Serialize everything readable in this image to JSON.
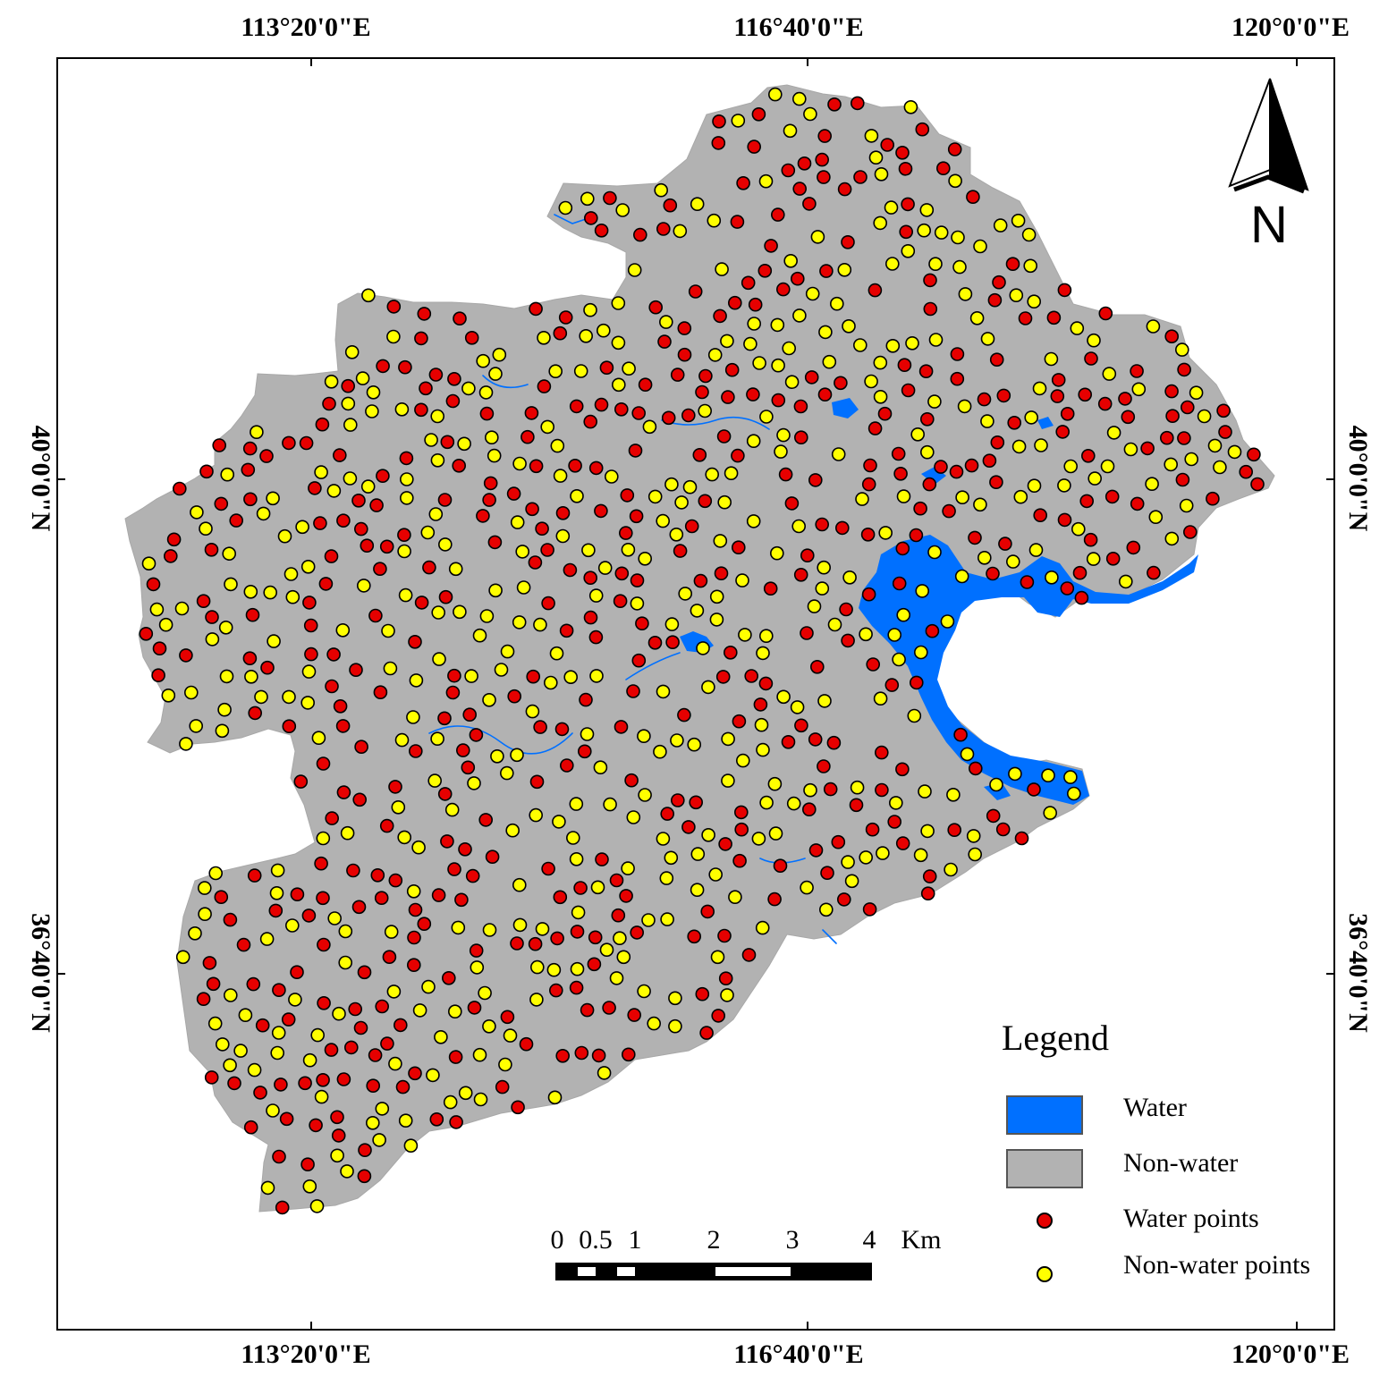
{
  "graticule": {
    "longitude_labels": [
      "113°20'0\"E",
      "116°40'0\"E",
      "120°0'0\"E"
    ],
    "latitude_labels": [
      "40°0'0\"N",
      "36°40'0\"N"
    ]
  },
  "legend": {
    "title": "Legend",
    "items": [
      {
        "label": "Water",
        "kind": "swatch",
        "color": "#0070ff"
      },
      {
        "label": "Non-water",
        "kind": "swatch",
        "color": "#b2b2b2"
      },
      {
        "label": "Water points",
        "kind": "dot",
        "color": "#e60000"
      },
      {
        "label": "Non-water points",
        "kind": "dot",
        "color": "#ffff00"
      }
    ]
  },
  "scale_bar": {
    "labels": [
      "0",
      "0.5",
      "1",
      "2",
      "3",
      "4"
    ],
    "unit": "Km"
  },
  "north_arrow": {
    "letter": "N",
    "icon": "north-arrow-icon"
  },
  "colors": {
    "water": "#0070ff",
    "land": "#b2b2b2",
    "water_point": "#e60000",
    "non_water_point": "#ffff00"
  }
}
